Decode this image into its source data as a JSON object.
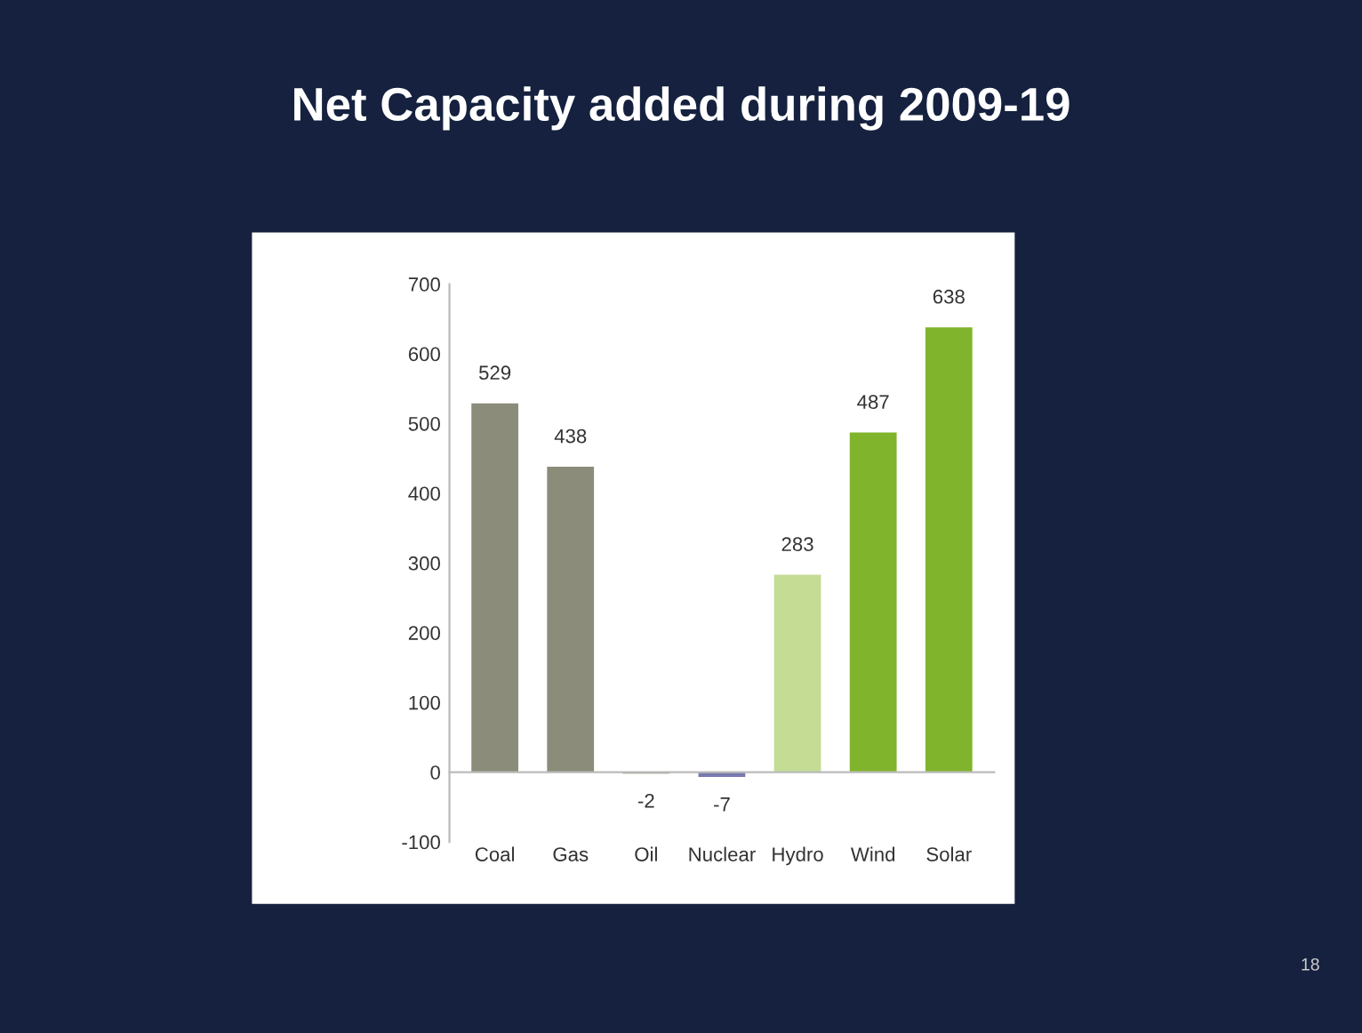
{
  "chart_data": {
    "type": "bar",
    "title": "Net Capacity added during 2009-19",
    "categories": [
      "Coal",
      "Gas",
      "Oil",
      "Nuclear",
      "Hydro",
      "Wind",
      "Solar"
    ],
    "values": [
      529,
      438,
      -2,
      -7,
      283,
      487,
      638
    ],
    "colors": [
      "#8c8c7a",
      "#8c8c7a",
      "#8c8c7a",
      "#7a7ab0",
      "#c4dc94",
      "#80b42c",
      "#80b42c"
    ],
    "ylim": [
      -100,
      700
    ],
    "yticks": [
      -100,
      0,
      100,
      200,
      300,
      400,
      500,
      600,
      700
    ],
    "data_labels": true,
    "annotations": [
      "18"
    ]
  }
}
